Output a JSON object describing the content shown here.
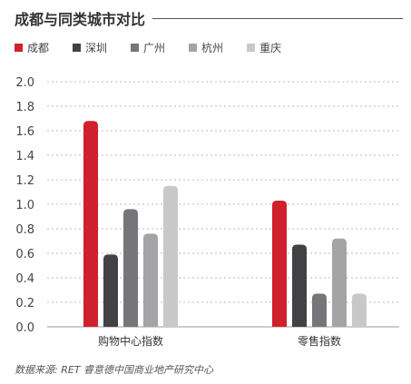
{
  "chart_data": {
    "type": "bar",
    "title": "成都与同类城市对比",
    "categories": [
      "购物中心指数",
      "零售指数"
    ],
    "series": [
      {
        "name": "成都",
        "color": "#d0202e",
        "values": [
          1.68,
          1.03
        ]
      },
      {
        "name": "深圳",
        "color": "#424244",
        "values": [
          0.59,
          0.67
        ]
      },
      {
        "name": "广州",
        "color": "#76767a",
        "values": [
          0.96,
          0.27
        ]
      },
      {
        "name": "杭州",
        "color": "#a4a4a6",
        "values": [
          0.76,
          0.72
        ]
      },
      {
        "name": "重庆",
        "color": "#c8c8c8",
        "values": [
          1.15,
          0.27
        ]
      }
    ],
    "ylim": [
      0,
      2.0
    ],
    "yticks": [
      "0.0",
      "0.2",
      "0.4",
      "0.6",
      "0.8",
      "1.0",
      "1.2",
      "1.4",
      "1.6",
      "1.8",
      "2.0"
    ],
    "grid": true,
    "legend_position": "top"
  },
  "source": "数据来源: RET 睿意德中国商业地产研究中心"
}
